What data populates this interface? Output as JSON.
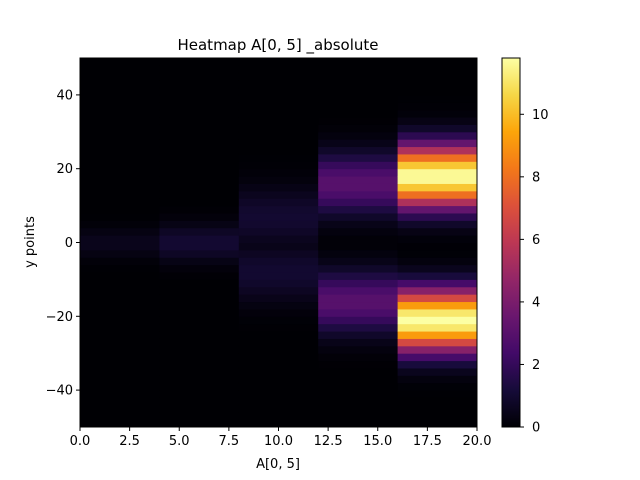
{
  "chart_data": {
    "type": "heatmap",
    "title": "Heatmap A[0, 5] _absolute",
    "xlabel": "A[0, 5]",
    "ylabel": "y points",
    "xlim": [
      0,
      20
    ],
    "ylim": [
      -50,
      50
    ],
    "x_ticks": [
      "0.0",
      "2.5",
      "5.0",
      "7.5",
      "10.0",
      "12.5",
      "15.0",
      "17.5",
      "20.0"
    ],
    "y_ticks": [
      "−40",
      "−20",
      "0",
      "20",
      "40"
    ],
    "colorbar": {
      "colormap": "inferno",
      "range": [
        0,
        11.8
      ],
      "ticks": [
        "0",
        "2",
        "4",
        "6",
        "8",
        "10"
      ]
    },
    "columns": [
      {
        "x_range": [
          0,
          4
        ],
        "profile": "single-peak",
        "peak_value": 0.55,
        "peak_y": [
          0
        ],
        "width": 4
      },
      {
        "x_range": [
          4,
          8
        ],
        "profile": "single-peak",
        "peak_value": 1.05,
        "peak_y": [
          0
        ],
        "width": 5
      },
      {
        "x_range": [
          8,
          12
        ],
        "profile": "double-peak",
        "peak_value": 1.0,
        "peak_y": [
          7,
          -8
        ],
        "width": 8
      },
      {
        "x_range": [
          12,
          16
        ],
        "profile": "double-peak",
        "peak_value": 3.0,
        "peak_y": [
          16,
          -16
        ],
        "width": 8
      },
      {
        "x_range": [
          16,
          20
        ],
        "profile": "double-peak",
        "peak_value": 11.8,
        "peak_y": [
          18,
          -21
        ],
        "width": 8
      }
    ]
  }
}
